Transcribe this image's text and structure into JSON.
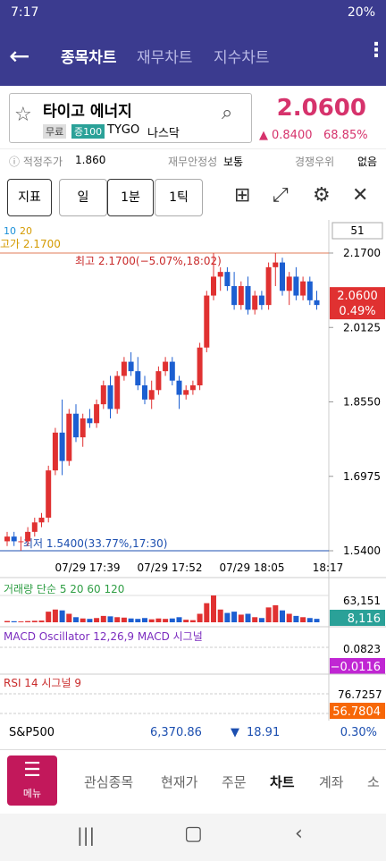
{
  "status": {
    "time": "7:17",
    "battery": "20%"
  },
  "tabs": [
    "종목차트",
    "재무차트",
    "지수차트"
  ],
  "stock": {
    "name": "타이고 에너지",
    "badges": [
      "무료",
      "증100"
    ],
    "ticker": "TYGO",
    "market": "나스닥",
    "price": "2.0600",
    "change": "0.8400",
    "change_pct": "68.85%"
  },
  "info": [
    {
      "label": "적정주가",
      "value": "1.860"
    },
    {
      "label": "재무안정성",
      "value": "보통"
    },
    {
      "label": "경쟁우위",
      "value": "없음"
    }
  ],
  "toolbar": [
    "지표",
    "일",
    "1분",
    "1틱"
  ],
  "chart": {
    "type": "candlestick",
    "ma_legend": [
      "10",
      "20"
    ],
    "count": "51",
    "ylim": [
      1.54,
      2.17
    ],
    "yticks": [
      {
        "value": 2.17,
        "label": "2.1700"
      },
      {
        "value": 2.0125,
        "label": "2.0125"
      },
      {
        "value": 1.855,
        "label": "1.8550"
      },
      {
        "value": 1.6975,
        "label": "1.6975"
      },
      {
        "value": 1.54,
        "label": "1.5400"
      }
    ],
    "xticks": [
      "07/29 17:39",
      "07/29 17:52",
      "07/29 18:05",
      "18:17"
    ],
    "high_note": "최고 2.1700(−5.07%,18:02)",
    "low_note": "최저 1.5400(33.77%,17:30)",
    "prev_high": "고가 2.1700",
    "last_price": "2.0600",
    "last_pct": "0.49%",
    "up_color": "#e03131",
    "down_color": "#1c5fd1",
    "candles": [
      [
        1.56,
        1.58,
        1.55,
        1.57
      ],
      [
        1.57,
        1.58,
        1.55,
        1.56
      ],
      [
        1.56,
        1.57,
        1.54,
        1.56
      ],
      [
        1.56,
        1.59,
        1.55,
        1.58
      ],
      [
        1.58,
        1.61,
        1.57,
        1.6
      ],
      [
        1.6,
        1.62,
        1.59,
        1.61
      ],
      [
        1.61,
        1.72,
        1.6,
        1.71
      ],
      [
        1.71,
        1.8,
        1.7,
        1.79
      ],
      [
        1.79,
        1.86,
        1.7,
        1.73
      ],
      [
        1.73,
        1.84,
        1.72,
        1.83
      ],
      [
        1.83,
        1.85,
        1.77,
        1.78
      ],
      [
        1.78,
        1.83,
        1.76,
        1.82
      ],
      [
        1.82,
        1.84,
        1.8,
        1.81
      ],
      [
        1.81,
        1.86,
        1.8,
        1.85
      ],
      [
        1.85,
        1.9,
        1.84,
        1.89
      ],
      [
        1.89,
        1.91,
        1.82,
        1.84
      ],
      [
        1.84,
        1.92,
        1.83,
        1.91
      ],
      [
        1.91,
        1.95,
        1.9,
        1.94
      ],
      [
        1.94,
        1.96,
        1.91,
        1.92
      ],
      [
        1.92,
        1.95,
        1.88,
        1.89
      ],
      [
        1.89,
        1.91,
        1.85,
        1.86
      ],
      [
        1.86,
        1.9,
        1.84,
        1.88
      ],
      [
        1.88,
        1.93,
        1.87,
        1.92
      ],
      [
        1.92,
        1.95,
        1.91,
        1.94
      ],
      [
        1.94,
        1.95,
        1.89,
        1.9
      ],
      [
        1.9,
        1.91,
        1.84,
        1.87
      ],
      [
        1.87,
        1.89,
        1.86,
        1.88
      ],
      [
        1.88,
        1.9,
        1.87,
        1.89
      ],
      [
        1.89,
        1.98,
        1.88,
        1.97
      ],
      [
        1.97,
        2.09,
        1.96,
        2.08
      ],
      [
        2.08,
        2.17,
        2.07,
        2.12
      ],
      [
        2.12,
        2.14,
        2.09,
        2.13
      ],
      [
        2.13,
        2.14,
        2.09,
        2.1
      ],
      [
        2.1,
        2.13,
        2.05,
        2.06
      ],
      [
        2.06,
        2.11,
        2.05,
        2.1
      ],
      [
        2.1,
        2.12,
        2.04,
        2.05
      ],
      [
        2.05,
        2.09,
        2.04,
        2.08
      ],
      [
        2.08,
        2.09,
        2.05,
        2.06
      ],
      [
        2.06,
        2.15,
        2.05,
        2.14
      ],
      [
        2.14,
        2.17,
        2.1,
        2.15
      ],
      [
        2.15,
        2.16,
        2.08,
        2.09
      ],
      [
        2.09,
        2.13,
        2.06,
        2.12
      ],
      [
        2.12,
        2.14,
        2.07,
        2.08
      ],
      [
        2.08,
        2.12,
        2.07,
        2.11
      ],
      [
        2.11,
        2.12,
        2.06,
        2.07
      ],
      [
        2.07,
        2.09,
        2.05,
        2.06
      ]
    ]
  },
  "volume": {
    "title": "거래량 단순 5 20 60 120",
    "ymax": {
      "value": 63151,
      "label": "63,151"
    },
    "last_label": "8,116",
    "values": [
      3000,
      2500,
      2000,
      2800,
      3500,
      4000,
      25000,
      30000,
      28000,
      20000,
      12000,
      9000,
      8000,
      10000,
      15000,
      14000,
      12000,
      11000,
      9000,
      8000,
      10000,
      7000,
      9000,
      8000,
      9000,
      12000,
      6000,
      5000,
      20000,
      45000,
      63151,
      30000,
      22000,
      25000,
      18000,
      20000,
      12000,
      10000,
      35000,
      40000,
      28000,
      20000,
      15000,
      12000,
      10000,
      8116
    ]
  },
  "macd": {
    "title": "MACD Oscillator 12,26,9 MACD 시그널",
    "top": "0.0823",
    "last": "−0.0116"
  },
  "rsi": {
    "title": "RSI 14 시그널 9",
    "top": "76.7257",
    "last": "56.7804"
  },
  "index": {
    "name": "S&P500",
    "value": "6,370.86",
    "change": "18.91",
    "pct": "0.30%"
  },
  "bottom": {
    "menu": "메뉴",
    "items": [
      "관심종목",
      "현재가",
      "주문",
      "차트",
      "계좌",
      "소"
    ]
  }
}
